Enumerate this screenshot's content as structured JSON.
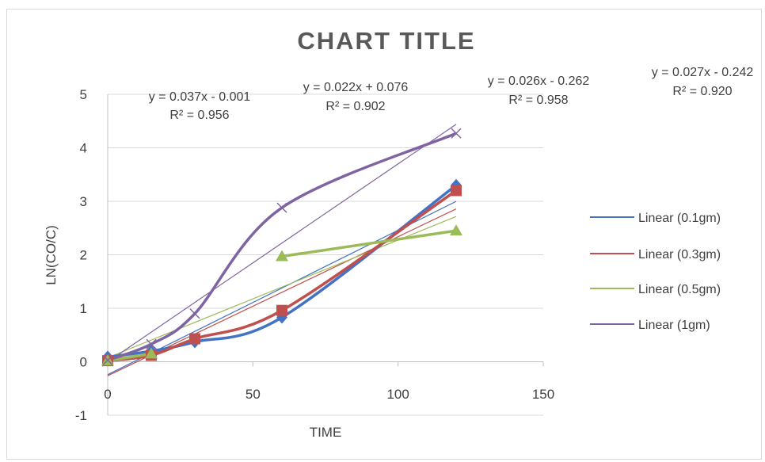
{
  "chart_data": {
    "type": "line",
    "title": "CHART TITLE",
    "xlabel": "TIME",
    "ylabel": "LN(CO/C)",
    "xlim": [
      0,
      150
    ],
    "ylim": [
      -1,
      5
    ],
    "x_ticks": [
      0,
      50,
      100,
      150
    ],
    "y_ticks": [
      -1,
      0,
      1,
      2,
      3,
      4,
      5
    ],
    "x_tick_labels": [
      "0",
      "50",
      "100",
      "150"
    ],
    "y_tick_labels": [
      "-1",
      "0",
      "1",
      "2",
      "3",
      "4",
      "5"
    ],
    "grid": "horizontal major",
    "legend_position": "right",
    "series": [
      {
        "key": "s01",
        "color": "#4472C4",
        "marker": "diamond",
        "x": [
          0,
          15,
          30,
          60,
          120
        ],
        "y": [
          0.09,
          0.2,
          0.37,
          0.83,
          3.3
        ]
      },
      {
        "key": "s03",
        "color": "#C0504D",
        "marker": "square",
        "x": [
          0,
          15,
          30,
          60,
          120
        ],
        "y": [
          0.02,
          0.12,
          0.43,
          0.96,
          3.2
        ]
      },
      {
        "key": "s05",
        "color": "#9BBB59",
        "marker": "triangle",
        "x": [
          0,
          15,
          60,
          120
        ],
        "y": [
          0.02,
          0.15,
          1.97,
          2.45
        ]
      },
      {
        "key": "s1",
        "color": "#8064A2",
        "marker": "x",
        "x": [
          0,
          15,
          30,
          60,
          120
        ],
        "y": [
          0.03,
          0.33,
          0.9,
          2.88,
          4.27
        ]
      }
    ],
    "trendlines": [
      {
        "label": "Linear (0.1gm)",
        "color": "#4472C4",
        "slope": 0.027,
        "intercept": -0.242,
        "equation": "y = 0.027x - 0.242",
        "r2": "R² = 0.920"
      },
      {
        "label": "Linear (0.3gm)",
        "color": "#C0504D",
        "slope": 0.026,
        "intercept": -0.262,
        "equation": "y = 0.026x - 0.262",
        "r2": "R² = 0.958"
      },
      {
        "label": "Linear (0.5gm)",
        "color": "#9BBB59",
        "slope": 0.022,
        "intercept": 0.076,
        "equation": "y = 0.022x + 0.076",
        "r2": "R² = 0.902"
      },
      {
        "label": "Linear (1gm)",
        "color": "#8064A2",
        "slope": 0.037,
        "intercept": -0.001,
        "equation": "y = 0.037x - 0.001",
        "r2": "R² = 0.956"
      }
    ]
  }
}
